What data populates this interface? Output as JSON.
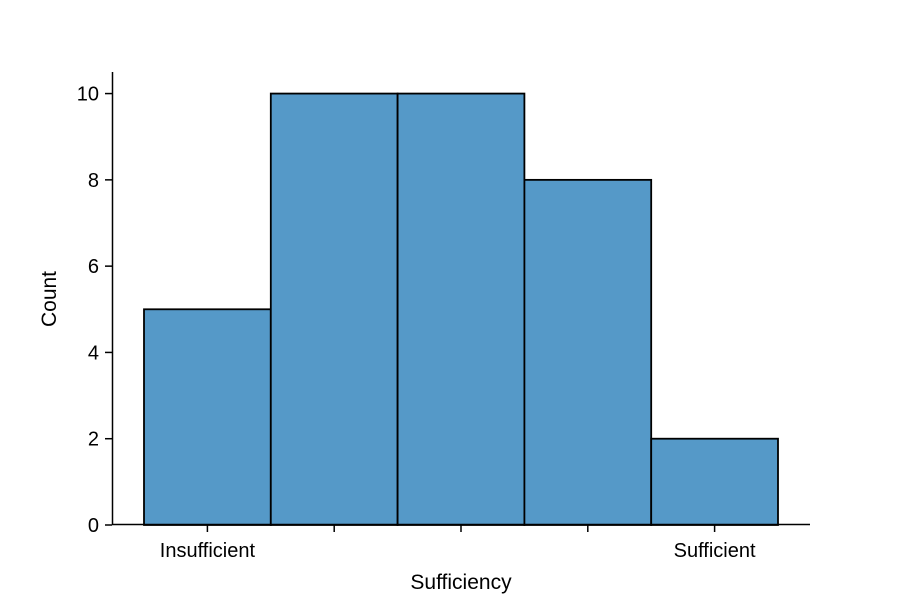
{
  "chart_data": {
    "type": "bar",
    "title": "",
    "xlabel": "Sufficiency",
    "ylabel": "Count",
    "bins": 5,
    "values": [
      5,
      10,
      10,
      8,
      2
    ],
    "x_tick_labels": [
      "Insufficient",
      "",
      "",
      "",
      "Sufficient"
    ],
    "y_ticks": [
      0,
      2,
      4,
      6,
      8,
      10
    ],
    "ylim": [
      0,
      10.5
    ],
    "grid": false,
    "bar_color": "#5599c8",
    "edge_color": "#000000"
  }
}
